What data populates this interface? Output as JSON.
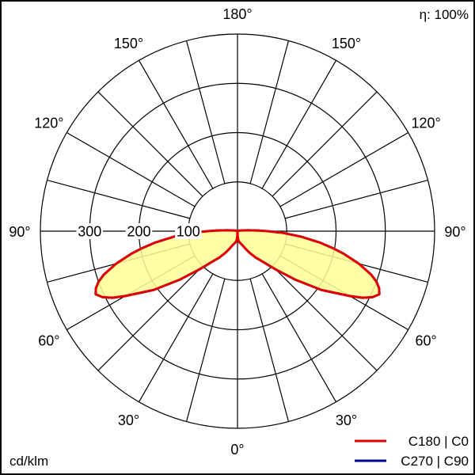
{
  "efficiency_label": "η: 100%",
  "unit_label": "cd/klm",
  "colors": {
    "c0_c180": "#e00000",
    "c90_c270": "#00008b",
    "fill": "#ffff99",
    "grid": "#000000"
  },
  "legend": [
    {
      "label": "C180 | C0",
      "color_key": "c0_c180"
    },
    {
      "label": "C270 | C90",
      "color_key": "c90_c270"
    }
  ],
  "chart_data": {
    "type": "polar",
    "title": "",
    "radial_ticks": [
      100,
      200,
      300
    ],
    "radial_tick_labels": [
      "100",
      "200",
      "300"
    ],
    "r_max": 400,
    "angle_ticks": [
      {
        "angle": 0,
        "label": "0°",
        "sides": [
          "bottom"
        ]
      },
      {
        "angle": 30,
        "label": "30°",
        "sides": [
          "left",
          "right"
        ]
      },
      {
        "angle": 60,
        "label": "60°",
        "sides": [
          "left",
          "right"
        ]
      },
      {
        "angle": 90,
        "label": "90°",
        "sides": [
          "left",
          "right"
        ]
      },
      {
        "angle": 120,
        "label": "120°",
        "sides": [
          "left",
          "right"
        ]
      },
      {
        "angle": 150,
        "label": "150°",
        "sides": [
          "left",
          "right"
        ]
      },
      {
        "angle": 180,
        "label": "180°",
        "sides": [
          "top"
        ]
      }
    ],
    "grid": true,
    "series": [
      {
        "name": "C180 | C0",
        "color_key": "c0_c180",
        "filled": true,
        "symmetric": true,
        "gamma": [
          0,
          2,
          5,
          10,
          15,
          20,
          25,
          30,
          35,
          40,
          45,
          50,
          55,
          60,
          62,
          64,
          66,
          68,
          70,
          72,
          75,
          78,
          80,
          82,
          85,
          88,
          90,
          92,
          95,
          100,
          110,
          120,
          130,
          150,
          170,
          180
        ],
        "intensity": [
          0,
          10,
          18,
          23,
          26,
          31,
          40,
          52,
          66,
          82,
          110,
          153,
          208,
          263,
          288,
          305,
          315,
          310,
          300,
          285,
          255,
          220,
          195,
          170,
          130,
          90,
          60,
          40,
          20,
          8,
          3,
          1,
          0,
          0,
          0,
          0
        ]
      },
      {
        "name": "C270 | C90",
        "color_key": "c90_c270",
        "filled": false,
        "symmetric": true,
        "gamma": [
          0,
          2,
          5,
          10,
          15,
          20,
          25,
          30,
          35,
          40,
          45,
          50,
          55,
          60,
          62,
          64,
          66,
          68,
          70,
          72,
          75,
          78,
          80,
          82,
          85,
          88,
          90,
          92,
          95,
          100,
          110,
          120,
          130,
          150,
          170,
          180
        ],
        "intensity": [
          0,
          10,
          18,
          23,
          26,
          31,
          40,
          52,
          66,
          82,
          110,
          153,
          208,
          263,
          288,
          305,
          315,
          310,
          300,
          285,
          255,
          220,
          195,
          170,
          130,
          90,
          60,
          40,
          20,
          8,
          3,
          1,
          0,
          0,
          0,
          0
        ]
      }
    ]
  }
}
